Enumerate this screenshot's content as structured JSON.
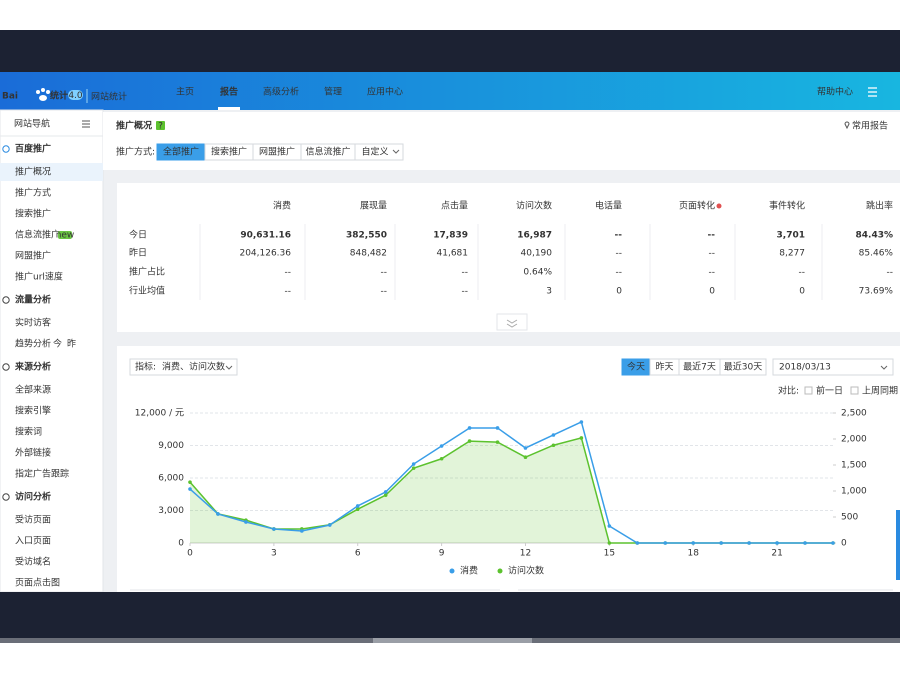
{
  "header": {
    "logo": "Bai",
    "logo_suffix": "统计",
    "version": "4.0",
    "product": "网站统计",
    "nav": [
      "主页",
      "报告",
      "高级分析",
      "管理",
      "应用中心"
    ],
    "help": "帮助中心"
  },
  "sidebar": {
    "title": "网站导航",
    "groups": [
      {
        "title": "百度推广",
        "items": [
          "推广概况",
          "推广方式",
          "搜索推广",
          {
            "label": "信息流推广",
            "badge": "new"
          },
          "网盟推广",
          "推广url速度"
        ]
      },
      {
        "title": "流量分析",
        "items": [
          "实时访客",
          {
            "label": "趋势分析",
            "extras": [
              "今",
              "昨"
            ]
          }
        ]
      },
      {
        "title": "来源分析",
        "items": [
          "全部来源",
          "搜索引擎",
          "搜索词",
          "外部链接",
          "指定广告跟踪"
        ]
      },
      {
        "title": "访问分析",
        "items": [
          "受访页面",
          "入口页面",
          "受访域名",
          "页面点击图"
        ]
      }
    ]
  },
  "panel": {
    "title": "推广概况",
    "help_badge": "?",
    "shortcut": "常用报告",
    "filter_label": "推广方式:",
    "tabs": [
      "全部推广",
      "搜索推广",
      "网盟推广",
      "信息流推广",
      "自定义"
    ]
  },
  "table": {
    "columns": [
      "消费",
      "展现量",
      "点击量",
      "访问次数",
      "电话量",
      "页面转化",
      "事件转化",
      "跳出率"
    ],
    "rows": [
      {
        "label": "今日",
        "values": [
          "90,631.16",
          "382,550",
          "17,839",
          "16,987",
          "--",
          "--",
          "3,701",
          "84.43%"
        ]
      },
      {
        "label": "昨日",
        "values": [
          "204,126.36",
          "848,482",
          "41,681",
          "40,190",
          "--",
          "--",
          "8,277",
          "85.46%"
        ]
      },
      {
        "label": "推广占比",
        "values": [
          "--",
          "--",
          "--",
          "0.64%",
          "--",
          "--",
          "--",
          "--"
        ]
      },
      {
        "label": "行业均值",
        "values": [
          "--",
          "--",
          "--",
          "3",
          "0",
          "0",
          "0",
          "73.69%"
        ]
      }
    ]
  },
  "controls": {
    "metric_label": "指标:",
    "metric_value": "消费、访问次数",
    "ranges": [
      "今天",
      "昨天",
      "最近7天",
      "最近30天"
    ],
    "date": "2018/03/13",
    "compare_label": "对比:",
    "compare_options": [
      "前一日",
      "上周同期"
    ]
  },
  "chart_data": {
    "type": "line",
    "x": [
      0,
      1,
      2,
      3,
      4,
      5,
      6,
      7,
      8,
      9,
      10,
      11,
      12,
      13,
      14,
      15,
      16,
      17,
      18,
      19,
      20,
      21,
      22,
      23
    ],
    "xlim": [
      0,
      23
    ],
    "xticks": [
      0,
      3,
      6,
      9,
      12,
      15,
      18,
      21
    ],
    "ylim": [
      0,
      12000
    ],
    "yticks": [
      0,
      {
        "value": 3000,
        "label": "3,000"
      },
      {
        "value": 6000,
        "label": "6,000"
      },
      {
        "value": 9000,
        "label": "9,000"
      },
      {
        "value": 12000,
        "label": "12,000 / 元"
      }
    ],
    "y2lim": [
      0,
      2500
    ],
    "y2ticks": [
      0,
      500,
      {
        "value": 1000,
        "label": "1,000"
      },
      {
        "value": 1500,
        "label": "1,500"
      },
      {
        "value": 2000,
        "label": "2,000"
      },
      {
        "value": 2500,
        "label": "2,500"
      }
    ],
    "grid": true,
    "series": [
      {
        "name": "消费",
        "color": "#3a9ee8",
        "values": [
          4980,
          2680,
          1940,
          1290,
          1110,
          1660,
          3420,
          4710,
          7290,
          8950,
          10620,
          10620,
          8770,
          9970,
          11170,
          1570,
          0,
          0,
          0,
          0,
          0,
          0,
          0,
          0
        ]
      },
      {
        "name": "访问次数",
        "color": "#5cc22e",
        "axis": "y2",
        "area": true,
        "values": [
          1170,
          560,
          440,
          270,
          270,
          350,
          650,
          920,
          1440,
          1620,
          1960,
          1940,
          1650,
          1880,
          2020,
          0,
          0,
          0,
          0,
          0,
          0,
          0,
          0,
          0
        ]
      }
    ]
  }
}
